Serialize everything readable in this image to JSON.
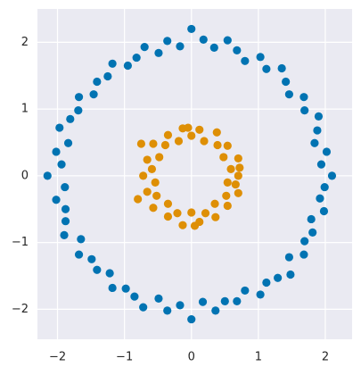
{
  "chart_data": {
    "type": "scatter",
    "xlim": [
      -2.3,
      2.4
    ],
    "ylim": [
      -2.45,
      2.5
    ],
    "xticks": [
      {
        "value": -2,
        "label": "−2"
      },
      {
        "value": -1,
        "label": "−1"
      },
      0,
      1,
      2
    ],
    "yticks": [
      {
        "value": -2,
        "label": "−2"
      },
      {
        "value": -1,
        "label": "−1"
      },
      0,
      1,
      2
    ],
    "grid": true,
    "background": "#eaeaf2",
    "series": [
      {
        "color": "#0173b2",
        "x": [
          2.1,
          1.94,
          2.02,
          1.84,
          1.88,
          1.9,
          1.69,
          1.68,
          1.46,
          1.41,
          1.35,
          1.12,
          1.03,
          0.8,
          0.68,
          0.54,
          0.34,
          0.18,
          0,
          -0.17,
          -0.36,
          -0.49,
          -0.7,
          -0.82,
          -0.95,
          -1.18,
          -1.25,
          -1.41,
          -1.46,
          -1.68,
          -1.69,
          -1.81,
          -1.97,
          -1.84,
          -2.02,
          -1.94,
          -2.15,
          -1.89,
          -2.02,
          -1.88,
          -1.88,
          -1.9,
          -1.65,
          -1.68,
          -1.49,
          -1.41,
          -1.22,
          -1.18,
          -0.98,
          -0.85,
          -0.72,
          -0.49,
          -0.36,
          -0.17,
          0,
          0.17,
          0.36,
          0.5,
          0.68,
          0.8,
          1.03,
          1.12,
          1.29,
          1.48,
          1.46,
          1.68,
          1.69,
          1.81,
          1.79,
          1.98,
          1.92,
          1.99
        ],
        "y": [
          0,
          0.17,
          0.36,
          0.49,
          0.68,
          0.89,
          0.98,
          1.18,
          1.22,
          1.41,
          1.61,
          1.6,
          1.78,
          1.72,
          1.88,
          2.03,
          1.92,
          2.04,
          2.2,
          1.94,
          2.02,
          1.84,
          1.93,
          1.77,
          1.65,
          1.68,
          1.49,
          1.41,
          1.22,
          1.18,
          0.98,
          0.85,
          0.72,
          0.49,
          0.36,
          0.17,
          0,
          -0.17,
          -0.36,
          -0.5,
          -0.68,
          -0.89,
          -0.95,
          -1.18,
          -1.25,
          -1.41,
          -1.46,
          -1.68,
          -1.69,
          -1.81,
          -1.97,
          -1.84,
          -2.02,
          -1.94,
          -2.15,
          -1.89,
          -2.02,
          -1.88,
          -1.88,
          -1.72,
          -1.78,
          -1.6,
          -1.53,
          -1.48,
          -1.22,
          -1.18,
          -0.98,
          -0.85,
          -0.65,
          -0.53,
          -0.34,
          -0.17
        ]
      },
      {
        "color": "#de8f05",
        "x": [
          0.7,
          0.59,
          0.7,
          0.48,
          0.54,
          0.39,
          0.38,
          0.19,
          0.12,
          0,
          -0.13,
          -0.19,
          -0.35,
          -0.39,
          -0.57,
          -0.48,
          -0.66,
          -0.59,
          -0.72,
          -0.54,
          -0.66,
          -0.52,
          -0.57,
          -0.35,
          -0.35,
          -0.21,
          -0.13,
          0,
          0.12,
          0.21,
          0.36,
          0.35,
          0.54,
          0.52,
          0.7,
          0.54,
          -0.75,
          0.72,
          0.66,
          -0.8,
          0.05,
          -0.05
        ],
        "y": [
          0,
          0.1,
          0.26,
          0.28,
          0.45,
          0.46,
          0.65,
          0.52,
          0.69,
          0.6,
          0.71,
          0.52,
          0.61,
          0.46,
          0.48,
          0.28,
          0.24,
          0.1,
          0,
          -0.1,
          -0.24,
          -0.3,
          -0.48,
          -0.42,
          -0.61,
          -0.56,
          -0.74,
          -0.55,
          -0.69,
          -0.56,
          -0.62,
          -0.42,
          -0.45,
          -0.3,
          -0.26,
          -0.1,
          0.48,
          0.12,
          -0.13,
          -0.35,
          -0.75,
          0.72
        ]
      }
    ]
  }
}
